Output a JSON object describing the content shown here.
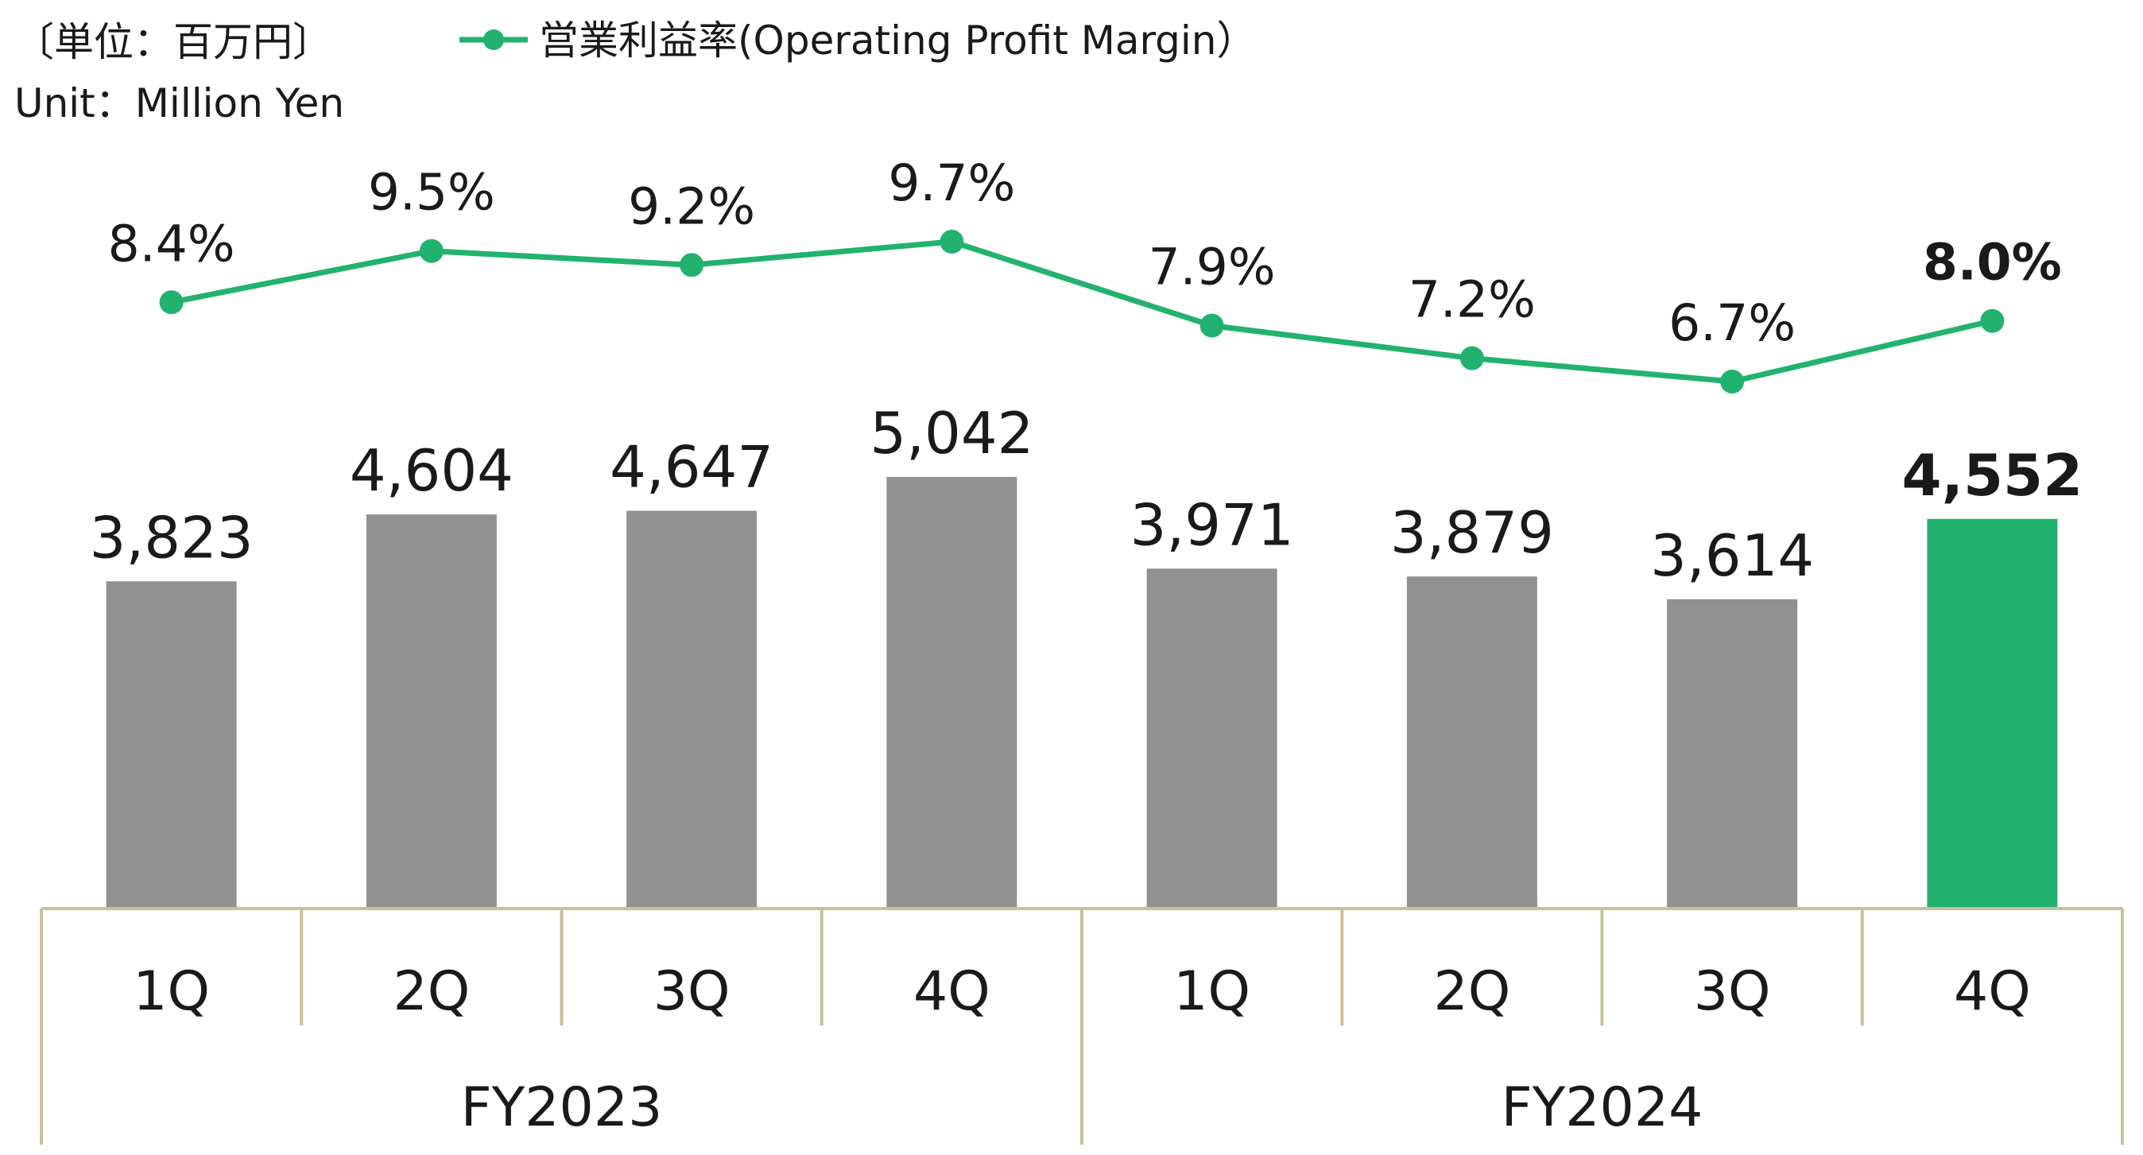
{
  "chart_data": {
    "type": "bar",
    "unit_label_ja": "〔単位：百万円〕",
    "unit_label_en": "Unit：Million Yen",
    "legend": {
      "line_series": "営業利益率(Operating Profit Margin）",
      "placement": "top"
    },
    "categories": [
      "1Q",
      "2Q",
      "3Q",
      "4Q",
      "1Q",
      "2Q",
      "3Q",
      "4Q"
    ],
    "groups": [
      {
        "label": "FY2023",
        "count": 4
      },
      {
        "label": "FY2024",
        "count": 4
      }
    ],
    "series": [
      {
        "type": "bar",
        "values": [
          3823,
          4604,
          4647,
          5042,
          3971,
          3879,
          3614,
          4552
        ],
        "value_labels": [
          "3,823",
          "4,604",
          "4,647",
          "5,042",
          "3,971",
          "3,879",
          "3,614",
          "4,552"
        ]
      },
      {
        "name": "営業利益率(Operating Profit Margin）",
        "type": "line",
        "values": [
          8.4,
          9.5,
          9.2,
          9.7,
          7.9,
          7.2,
          6.7,
          8.0
        ],
        "value_labels": [
          "8.4%",
          "9.5%",
          "9.2%",
          "9.7%",
          "7.9%",
          "7.2%",
          "6.7%",
          "8.0%"
        ]
      }
    ],
    "highlight_index": 7,
    "colors": {
      "bar": "#919191",
      "bar_highlight": "#22b26f",
      "line": "#22b26f",
      "axis": "#c9bf9b"
    },
    "ylim": [
      0,
      5042
    ],
    "margin_ylim": [
      6.7,
      9.7
    ],
    "grid": false
  }
}
